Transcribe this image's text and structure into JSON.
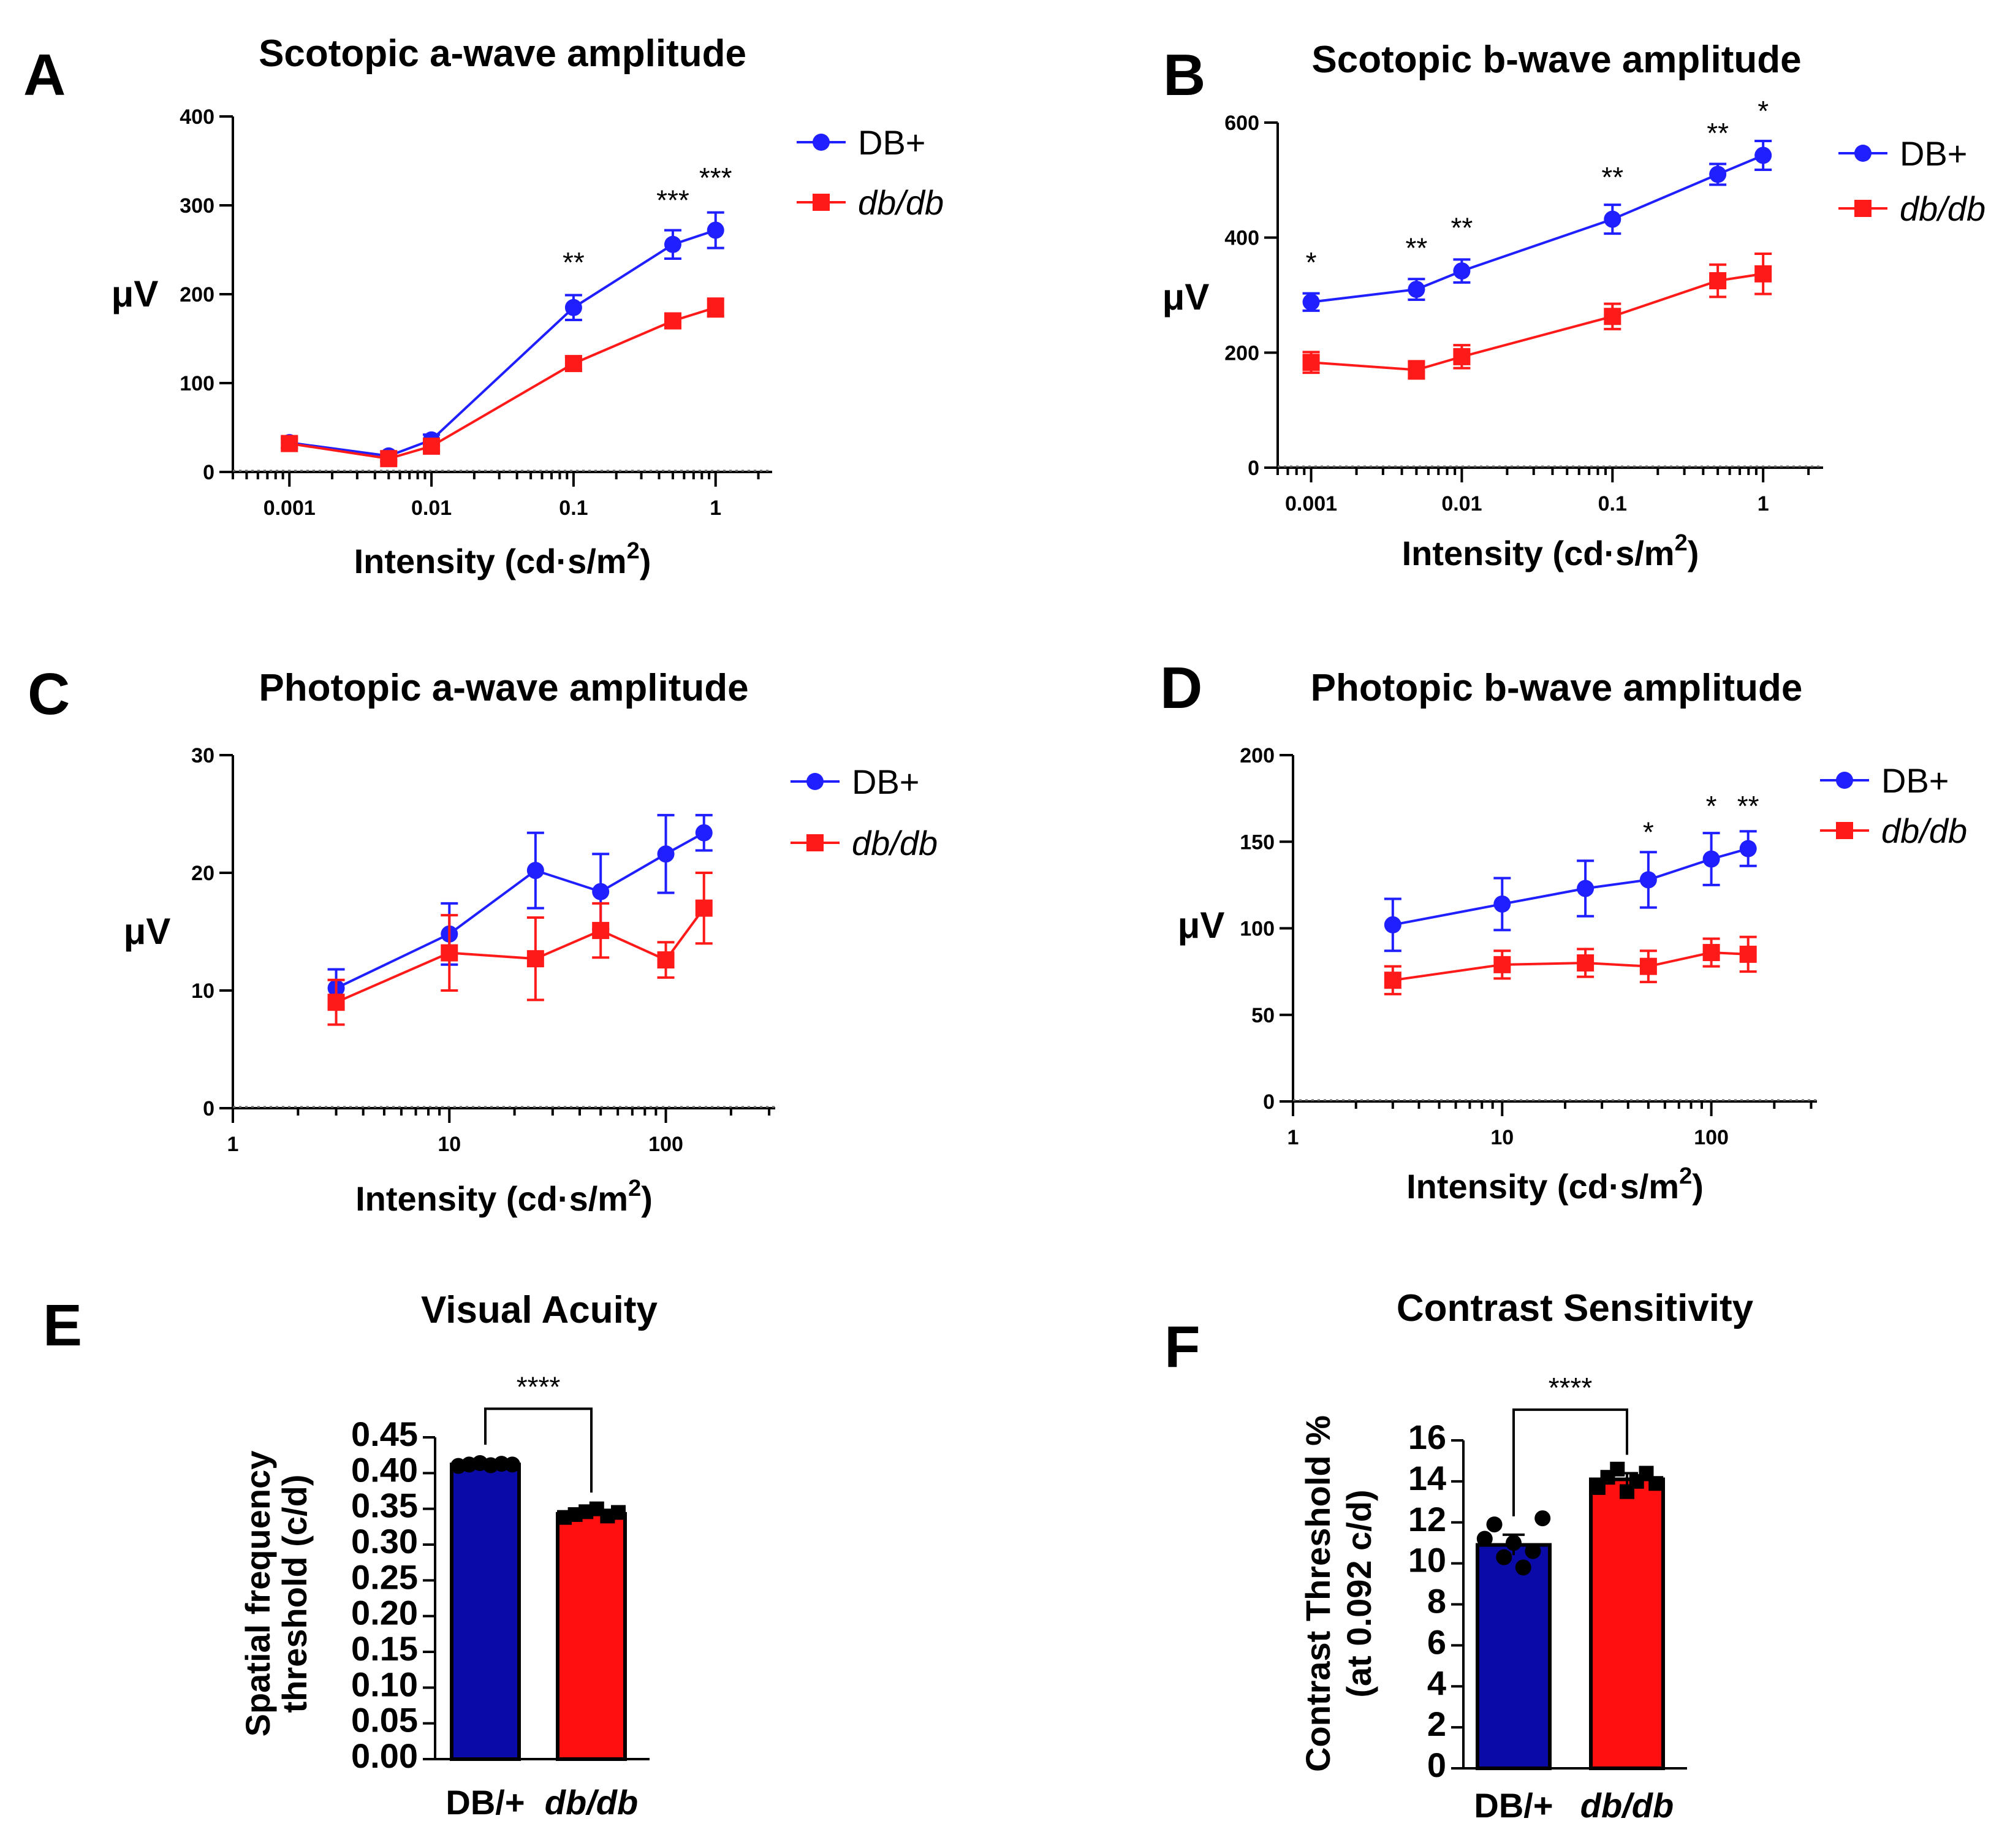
{
  "colors": {
    "blue": "#1f1fff",
    "red": "#ff1a1a",
    "bar_blue": "#0a0aa8",
    "bar_red": "#ff0f0f"
  },
  "chart_data": [
    {
      "panel": "A",
      "type": "line",
      "title": "Scotopic a-wave amplitude",
      "xlabel": "Intensity (cd·s/m",
      "xlabel_sup": "2",
      "xlabel_end": ")",
      "ylabel": "μV",
      "xscale": "log",
      "xlim": [
        0.0004,
        2.5
      ],
      "ylim": [
        0,
        400
      ],
      "xticks": [
        0.001,
        0.01,
        0.1,
        1
      ],
      "xtick_labels": [
        "0.001",
        "0.01",
        "0.1",
        "1"
      ],
      "yticks": [
        0,
        100,
        200,
        300,
        400
      ],
      "ytick_labels": [
        "0",
        "100",
        "200",
        "300",
        "400"
      ],
      "legend": [
        "DB+",
        "db/db"
      ],
      "series": [
        {
          "name": "DB+",
          "color": "blue",
          "marker": "circle",
          "x": [
            0.001,
            0.005,
            0.01,
            0.1,
            0.5,
            1
          ],
          "y": [
            33,
            18,
            36,
            185,
            256,
            272
          ],
          "err": [
            6,
            5,
            6,
            14,
            16,
            20
          ]
        },
        {
          "name": "db/db",
          "color": "red",
          "marker": "square",
          "x": [
            0.001,
            0.005,
            0.01,
            0.1,
            0.5,
            1
          ],
          "y": [
            32,
            15,
            29,
            122,
            170,
            185
          ],
          "err": [
            5,
            4,
            5,
            8,
            8,
            10
          ]
        }
      ],
      "annotations": [
        {
          "x": 0.1,
          "text": "**",
          "y": 225
        },
        {
          "x": 0.5,
          "text": "***",
          "y": 295
        },
        {
          "x": 1,
          "text": "***",
          "y": 320
        }
      ]
    },
    {
      "panel": "B",
      "type": "line",
      "title": "Scotopic b-wave amplitude",
      "xlabel": "Intensity (cd·s/m",
      "xlabel_sup": "2",
      "xlabel_end": ")",
      "ylabel": "μV",
      "xscale": "log",
      "xlim": [
        0.0006,
        2.5
      ],
      "ylim": [
        0,
        600
      ],
      "xticks": [
        0.001,
        0.01,
        0.1,
        1
      ],
      "xtick_labels": [
        "0.001",
        "0.01",
        "0.1",
        "1"
      ],
      "yticks": [
        0,
        200,
        400,
        600
      ],
      "ytick_labels": [
        "0",
        "200",
        "400",
        "600"
      ],
      "legend": [
        "DB+",
        "db/db"
      ],
      "series": [
        {
          "name": "DB+",
          "color": "blue",
          "marker": "circle",
          "x": [
            0.001,
            0.005,
            0.01,
            0.1,
            0.5,
            1
          ],
          "y": [
            288,
            310,
            342,
            432,
            510,
            543
          ],
          "err": [
            15,
            18,
            20,
            25,
            18,
            25
          ]
        },
        {
          "name": "db/db",
          "color": "red",
          "marker": "square",
          "x": [
            0.001,
            0.005,
            0.01,
            0.1,
            0.5,
            1
          ],
          "y": [
            183,
            170,
            193,
            263,
            325,
            337
          ],
          "err": [
            18,
            15,
            20,
            22,
            28,
            35
          ]
        }
      ],
      "annotations": [
        {
          "x": 0.001,
          "text": "*",
          "y": 340
        },
        {
          "x": 0.005,
          "text": "**",
          "y": 365
        },
        {
          "x": 0.01,
          "text": "**",
          "y": 400
        },
        {
          "x": 0.1,
          "text": "**",
          "y": 488
        },
        {
          "x": 0.5,
          "text": "**",
          "y": 565
        },
        {
          "x": 1,
          "text": "*",
          "y": 603
        }
      ]
    },
    {
      "panel": "C",
      "type": "line",
      "title": "Photopic a-wave amplitude",
      "xlabel": "Intensity (cd·s/m",
      "xlabel_sup": "2",
      "xlabel_end": ")",
      "ylabel": "μV",
      "xscale": "log",
      "xlim": [
        1,
        320
      ],
      "ylim": [
        0,
        30
      ],
      "xticks": [
        1,
        10,
        100
      ],
      "xtick_labels": [
        "1",
        "10",
        "100"
      ],
      "yticks": [
        0,
        10,
        20,
        30
      ],
      "ytick_labels": [
        "0",
        "10",
        "20",
        "30"
      ],
      "legend": [
        "DB+",
        "db/db"
      ],
      "series": [
        {
          "name": "DB+",
          "color": "blue",
          "marker": "circle",
          "x": [
            3,
            10,
            25,
            50,
            100,
            150
          ],
          "y": [
            10.2,
            14.8,
            20.2,
            18.4,
            21.6,
            23.4
          ],
          "err": [
            1.6,
            2.6,
            3.2,
            3.2,
            3.3,
            1.5
          ]
        },
        {
          "name": "db/db",
          "color": "red",
          "marker": "square",
          "x": [
            3,
            10,
            25,
            50,
            100,
            150
          ],
          "y": [
            9.0,
            13.2,
            12.7,
            15.1,
            12.6,
            17.0
          ],
          "err": [
            1.9,
            3.2,
            3.5,
            2.3,
            1.5,
            3.0
          ]
        }
      ],
      "annotations": []
    },
    {
      "panel": "D",
      "type": "line",
      "title": "Photopic b-wave amplitude",
      "xlabel": "Intensity (cd·s/m",
      "xlabel_sup": "2",
      "xlabel_end": ")",
      "ylabel": "μV",
      "xscale": "log",
      "xlim": [
        1,
        320
      ],
      "ylim": [
        0,
        200
      ],
      "xticks": [
        1,
        10,
        100
      ],
      "xtick_labels": [
        "1",
        "10",
        "100"
      ],
      "yticks": [
        0,
        50,
        100,
        150,
        200
      ],
      "ytick_labels": [
        "0",
        "50",
        "100",
        "150",
        "200"
      ],
      "legend": [
        "DB+",
        "db/db"
      ],
      "series": [
        {
          "name": "DB+",
          "color": "blue",
          "marker": "circle",
          "x": [
            3,
            10,
            25,
            50,
            100,
            150
          ],
          "y": [
            102,
            114,
            123,
            128,
            140,
            146
          ],
          "err": [
            15,
            15,
            16,
            16,
            15,
            10
          ]
        },
        {
          "name": "db/db",
          "color": "red",
          "marker": "square",
          "x": [
            3,
            10,
            25,
            50,
            100,
            150
          ],
          "y": [
            70,
            79,
            80,
            78,
            86,
            85
          ],
          "err": [
            8,
            8,
            8,
            9,
            8,
            10
          ]
        }
      ],
      "annotations": [
        {
          "x": 50,
          "text": "*",
          "y": 150
        },
        {
          "x": 100,
          "text": "*",
          "y": 165
        },
        {
          "x": 150,
          "text": "**",
          "y": 165
        }
      ]
    },
    {
      "panel": "E",
      "type": "bar",
      "title": "Visual Acuity",
      "ylabel_lines": [
        "Spatial frequency",
        "threshold (c/d)"
      ],
      "ylim": [
        0,
        0.45
      ],
      "yticks": [
        0,
        0.05,
        0.1,
        0.15,
        0.2,
        0.25,
        0.3,
        0.35,
        0.4,
        0.45
      ],
      "ytick_labels": [
        "0.00",
        "0.05",
        "0.10",
        "0.15",
        "0.20",
        "0.25",
        "0.30",
        "0.35",
        "0.40",
        "0.45"
      ],
      "categories": [
        "DB/+",
        "db/db"
      ],
      "values": [
        0.412,
        0.343
      ],
      "err": [
        0.002,
        0.004
      ],
      "points": [
        [
          0.41,
          0.412,
          0.414,
          0.411,
          0.413,
          0.412
        ],
        [
          0.338,
          0.342,
          0.346,
          0.35,
          0.34,
          0.345
        ]
      ],
      "significance": "****",
      "sig_y": 0.49
    },
    {
      "panel": "F",
      "type": "bar",
      "title": "Contrast Sensitivity",
      "ylabel_lines": [
        "Contrast Threshold %",
        "(at 0.092 c/d)"
      ],
      "ylim": [
        0,
        16
      ],
      "yticks": [
        0,
        2,
        4,
        6,
        8,
        10,
        12,
        14,
        16
      ],
      "ytick_labels": [
        "0",
        "2",
        "4",
        "6",
        "8",
        "10",
        "12",
        "14",
        "16"
      ],
      "categories": [
        "DB/+",
        "db/db"
      ],
      "values": [
        10.9,
        14.1
      ],
      "err": [
        0.5,
        0.3
      ],
      "points": [
        [
          11.2,
          11.9,
          10.3,
          11.0,
          9.8,
          10.6,
          12.2
        ],
        [
          13.7,
          14.2,
          14.6,
          13.5,
          14.0,
          14.4,
          13.9
        ]
      ],
      "significance": "****",
      "sig_y": 17.5
    }
  ]
}
